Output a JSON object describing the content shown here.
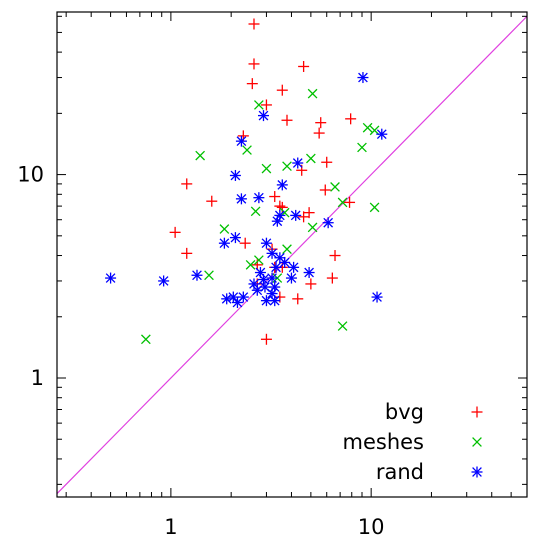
{
  "chart_data": {
    "type": "scatter",
    "title": "",
    "xlabel": "",
    "ylabel": "",
    "xscale": "log",
    "yscale": "log",
    "xlim": [
      0.27,
      60
    ],
    "ylim": [
      0.26,
      63
    ],
    "x_ticks": [
      {
        "value": 1,
        "label": "1"
      },
      {
        "value": 10,
        "label": "10"
      }
    ],
    "y_ticks": [
      {
        "value": 1,
        "label": "1"
      },
      {
        "value": 10,
        "label": "10"
      }
    ],
    "grid": false,
    "legend_position": "bottom-right",
    "reference_line": {
      "type": "y=x",
      "color": "#e040e0"
    },
    "series": [
      {
        "name": "bvg",
        "marker": "plus",
        "color": "#ff0000",
        "points": [
          [
            2.6,
            55
          ],
          [
            2.6,
            35
          ],
          [
            2.55,
            28
          ],
          [
            4.6,
            34
          ],
          [
            3.0,
            22
          ],
          [
            3.6,
            26
          ],
          [
            2.3,
            15.5
          ],
          [
            3.8,
            18.5
          ],
          [
            5.6,
            18
          ],
          [
            5.5,
            16
          ],
          [
            7.9,
            18.8
          ],
          [
            4.5,
            10.5
          ],
          [
            6.0,
            11.5
          ],
          [
            1.2,
            9
          ],
          [
            3.3,
            7.8
          ],
          [
            3.5,
            7
          ],
          [
            3.6,
            6.9
          ],
          [
            1.6,
            7.4
          ],
          [
            4.9,
            6.5
          ],
          [
            4.6,
            6.2
          ],
          [
            5.9,
            8.4
          ],
          [
            7.8,
            7.3
          ],
          [
            1.05,
            5.2
          ],
          [
            2.35,
            4.6
          ],
          [
            3.2,
            4.3
          ],
          [
            1.2,
            4.1
          ],
          [
            3.3,
            3.5
          ],
          [
            6.6,
            4
          ],
          [
            2.7,
            3.6
          ],
          [
            6.4,
            3.1
          ],
          [
            3.6,
            3.5
          ],
          [
            2.7,
            2.9
          ],
          [
            3.5,
            2.5
          ],
          [
            4.3,
            2.45
          ],
          [
            5.0,
            2.9
          ],
          [
            3.0,
            1.55
          ]
        ]
      },
      {
        "name": "meshes",
        "marker": "cross",
        "color": "#00c000",
        "points": [
          [
            2.75,
            22
          ],
          [
            5.1,
            25
          ],
          [
            9.6,
            17
          ],
          [
            10.4,
            16.5
          ],
          [
            9.0,
            13.6
          ],
          [
            2.4,
            13.2
          ],
          [
            1.4,
            12.4
          ],
          [
            5.0,
            12
          ],
          [
            3.8,
            11
          ],
          [
            3.0,
            10.7
          ],
          [
            6.6,
            8.7
          ],
          [
            7.2,
            7.3
          ],
          [
            2.65,
            6.6
          ],
          [
            3.7,
            6.5
          ],
          [
            5.1,
            5.5
          ],
          [
            10.4,
            6.9
          ],
          [
            1.85,
            5.4
          ],
          [
            3.8,
            4.3
          ],
          [
            2.75,
            3.8
          ],
          [
            2.5,
            3.6
          ],
          [
            1.55,
            3.2
          ],
          [
            3.4,
            3.1
          ],
          [
            7.2,
            1.8
          ],
          [
            0.75,
            1.55
          ]
        ]
      },
      {
        "name": "rand",
        "marker": "star",
        "color": "#0000ff",
        "points": [
          [
            9.1,
            30
          ],
          [
            2.9,
            19.5
          ],
          [
            2.25,
            14.6
          ],
          [
            11.3,
            15.8
          ],
          [
            4.3,
            11.4
          ],
          [
            2.1,
            9.9
          ],
          [
            3.6,
            8.9
          ],
          [
            2.25,
            7.6
          ],
          [
            2.75,
            7.7
          ],
          [
            3.5,
            6.3
          ],
          [
            4.2,
            6.3
          ],
          [
            6.1,
            5.8
          ],
          [
            3.4,
            5.9
          ],
          [
            2.1,
            4.9
          ],
          [
            1.85,
            4.6
          ],
          [
            3.0,
            4.6
          ],
          [
            3.2,
            4.1
          ],
          [
            3.5,
            3.9
          ],
          [
            3.7,
            3.7
          ],
          [
            3.35,
            3.5
          ],
          [
            4.1,
            3.5
          ],
          [
            2.8,
            3.3
          ],
          [
            2.9,
            3.05
          ],
          [
            3.2,
            3.1
          ],
          [
            4.0,
            3.1
          ],
          [
            4.9,
            3.3
          ],
          [
            2.6,
            2.9
          ],
          [
            2.95,
            2.8
          ],
          [
            3.3,
            2.8
          ],
          [
            2.7,
            2.7
          ],
          [
            3.2,
            2.6
          ],
          [
            2.05,
            2.5
          ],
          [
            2.3,
            2.5
          ],
          [
            1.9,
            2.45
          ],
          [
            2.15,
            2.35
          ],
          [
            3.0,
            2.4
          ],
          [
            3.3,
            2.4
          ],
          [
            1.35,
            3.2
          ],
          [
            0.5,
            3.1
          ],
          [
            0.92,
            3.0
          ],
          [
            10.7,
            2.5
          ]
        ]
      }
    ]
  }
}
